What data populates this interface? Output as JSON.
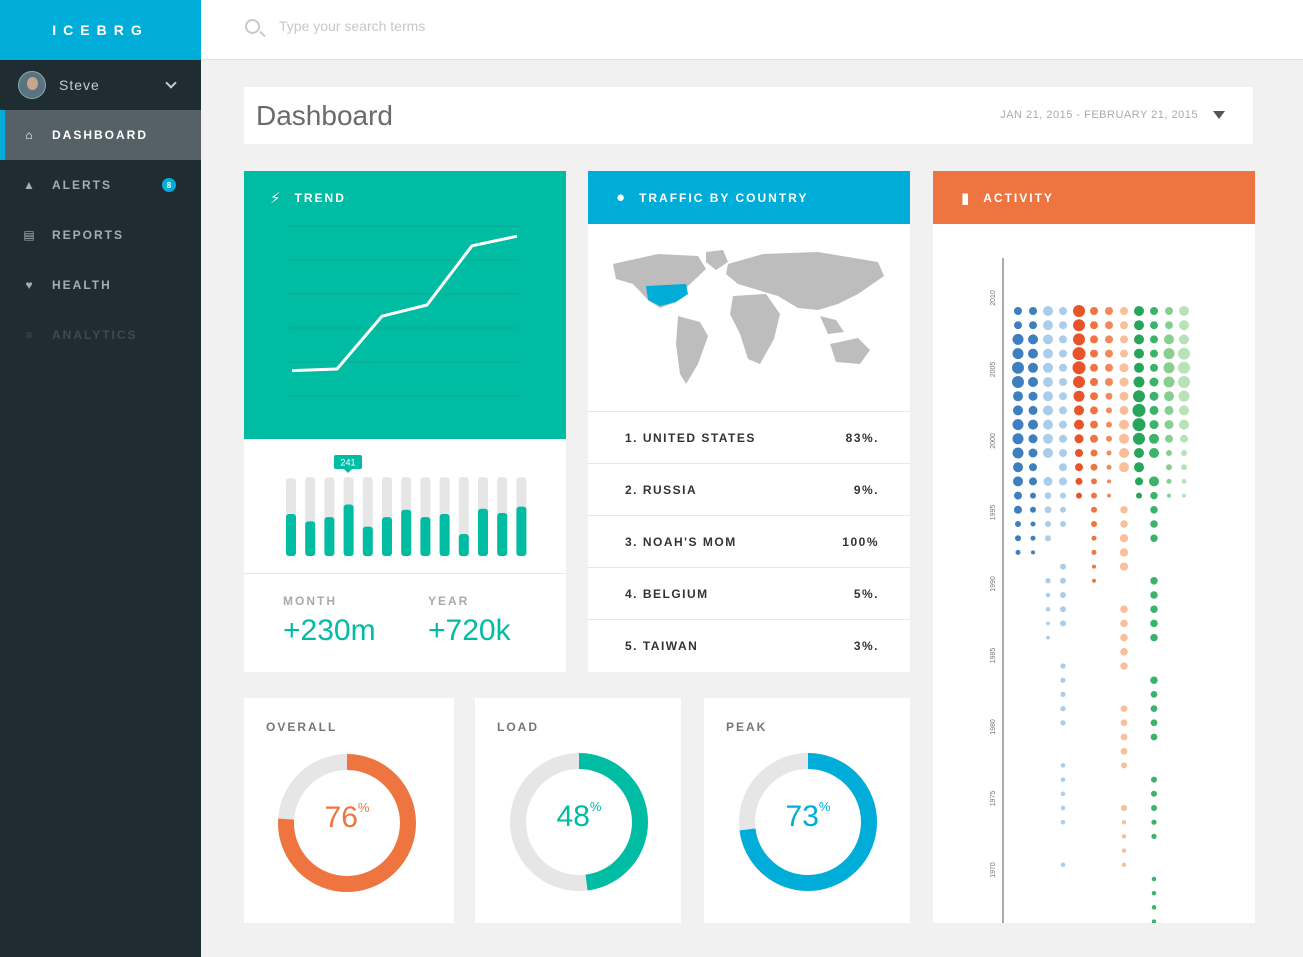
{
  "app": {
    "logo": "ICEBRG"
  },
  "user": {
    "name": "Steve"
  },
  "nav": [
    {
      "label": "DASHBOARD",
      "icon": "home-icon",
      "active": true
    },
    {
      "label": "ALERTS",
      "icon": "warning-icon",
      "badge": "8"
    },
    {
      "label": "REPORTS",
      "icon": "reports-icon"
    },
    {
      "label": "HEALTH",
      "icon": "heart-icon"
    },
    {
      "label": "ANALYTICS",
      "icon": "sliders-icon",
      "disabled": true
    }
  ],
  "search": {
    "placeholder": "Type your search terms"
  },
  "header": {
    "title": "Dashboard",
    "date_range": "JAN 21, 2015 - FEBRUARY 21, 2015"
  },
  "trend": {
    "title": "TREND",
    "tooltip": "241",
    "month_label": "MONTH",
    "month_value": "+230m",
    "year_label": "YEAR",
    "year_value": "+720k"
  },
  "traffic": {
    "title": "TRAFFIC BY COUNTRY",
    "countries": [
      {
        "name": "1. UNITED STATES",
        "value": "83%."
      },
      {
        "name": "2. RUSSIA",
        "value": "9%."
      },
      {
        "name": "3. NOAH'S MOM",
        "value": "100%"
      },
      {
        "name": "4. BELGIUM",
        "value": "5%."
      },
      {
        "name": "5. TAIWAN",
        "value": "3%."
      }
    ]
  },
  "activity": {
    "title": "ACTIVITY",
    "years": [
      "2010",
      "2005",
      "2000",
      "1995",
      "1990",
      "1985",
      "1980",
      "1975",
      "1970"
    ]
  },
  "donuts": [
    {
      "title": "OVERALL",
      "value": "76",
      "unit": "%",
      "fraction": 0.76,
      "color": "#ef7540"
    },
    {
      "title": "LOAD",
      "value": "48",
      "unit": "%",
      "fraction": 0.48,
      "color": "#00bca2"
    },
    {
      "title": "PEAK",
      "value": "73",
      "unit": "%",
      "fraction": 0.73,
      "color": "#00add8"
    }
  ],
  "colors": {
    "accent": "#00add8",
    "teal": "#00bca2",
    "orange": "#ef7540",
    "sidebar": "#1f2d33"
  },
  "chart_data": [
    {
      "type": "line",
      "x": [
        1,
        2,
        3,
        4,
        5,
        6
      ],
      "values": [
        4,
        5,
        38,
        45,
        82,
        88
      ],
      "ylim": [
        0,
        100
      ]
    },
    {
      "type": "bar",
      "categories": [
        "1",
        "2",
        "3",
        "4",
        "5",
        "6",
        "7",
        "8",
        "9",
        "10",
        "11",
        "12",
        "13"
      ],
      "values": [
        40,
        33,
        37,
        49,
        28,
        37,
        44,
        37,
        40,
        21,
        45,
        41,
        47
      ],
      "totals": [
        74,
        75,
        75,
        75,
        75,
        75,
        75,
        75,
        75,
        75,
        75,
        75,
        75
      ]
    }
  ]
}
